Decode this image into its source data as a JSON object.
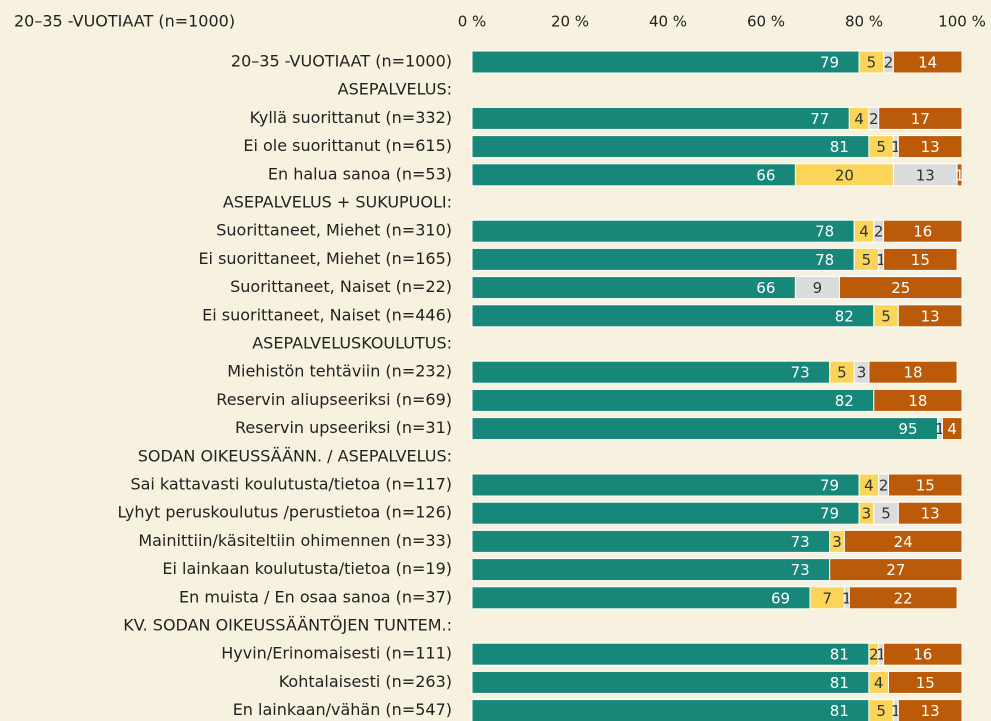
{
  "chart_data": {
    "type": "stacked-bar-horizontal",
    "title": "20–35 -VUOTIAAT (n=1000)",
    "categories": [
      "20–35 -VUOTIAAT (n=1000)",
      "ASEPALVELUS:",
      "Kyllä suorittanut (n=332)",
      "Ei ole suorittanut (n=615)",
      "En halua sanoa (n=53)",
      "ASEPALVELUS + SUKUPUOLI:",
      "Suorittaneet, Miehet (n=310)",
      "Ei suorittaneet, Miehet (n=165)",
      "Suorittaneet, Naiset (n=22)",
      "Ei suorittaneet, Naiset (n=446)",
      "ASEPALVELUSKOULUTUS:",
      "Miehistön tehtäviin (n=232)",
      "Reservin aliupseeriksi (n=69)",
      "Reservin upseeriksi (n=31)",
      "SODAN OIKEUSSÄÄNN. / ASEPALVELUS:",
      "Sai kattavasti koulutusta/tietoa (n=117)",
      "Lyhyt peruskoulutus /perustietoa (n=126)",
      "Mainittiin/käsiteltiin ohimennen (n=33)",
      "Ei lainkaan koulutusta/tietoa (n=19)",
      "En muista / En osaa sanoa (n=37)",
      "KV. SODAN OIKEUSSÄÄNTÖJEN TUNTEM.:",
      "Hyvin/Erinomaisesti (n=111)",
      "Kohtalaisesti (n=263)",
      "En lainkaan/vähän (n=547)"
    ],
    "series": [
      {
        "color": "#17877a",
        "values": [
          79,
          null,
          77,
          81,
          66,
          null,
          78,
          78,
          66,
          82,
          null,
          73,
          82,
          95,
          null,
          79,
          79,
          73,
          73,
          69,
          null,
          81,
          81,
          81
        ]
      },
      {
        "color": "#fbd55a",
        "values": [
          5,
          null,
          4,
          5,
          20,
          null,
          4,
          5,
          0,
          5,
          null,
          5,
          0,
          0,
          null,
          4,
          3,
          3,
          0,
          7,
          null,
          2,
          4,
          5
        ]
      },
      {
        "color": "#dcdcdc",
        "values": [
          2,
          null,
          2,
          1,
          13,
          null,
          2,
          1,
          9,
          0,
          null,
          3,
          0,
          1,
          null,
          2,
          5,
          0,
          0,
          1,
          null,
          1,
          0,
          1
        ]
      },
      {
        "color": "#bb5a08",
        "values": [
          14,
          null,
          17,
          13,
          1,
          null,
          16,
          15,
          25,
          13,
          null,
          18,
          18,
          4,
          null,
          15,
          13,
          24,
          27,
          22,
          null,
          16,
          15,
          13
        ]
      }
    ],
    "xlim": [
      0,
      100
    ],
    "xticks": [
      {
        "value": 0,
        "label": "0 %"
      },
      {
        "value": 20,
        "label": "20 %"
      },
      {
        "value": 40,
        "label": "40 %"
      },
      {
        "value": 60,
        "label": "60 %"
      },
      {
        "value": 80,
        "label": "80 %"
      },
      {
        "value": 100,
        "label": "100 %"
      }
    ]
  }
}
